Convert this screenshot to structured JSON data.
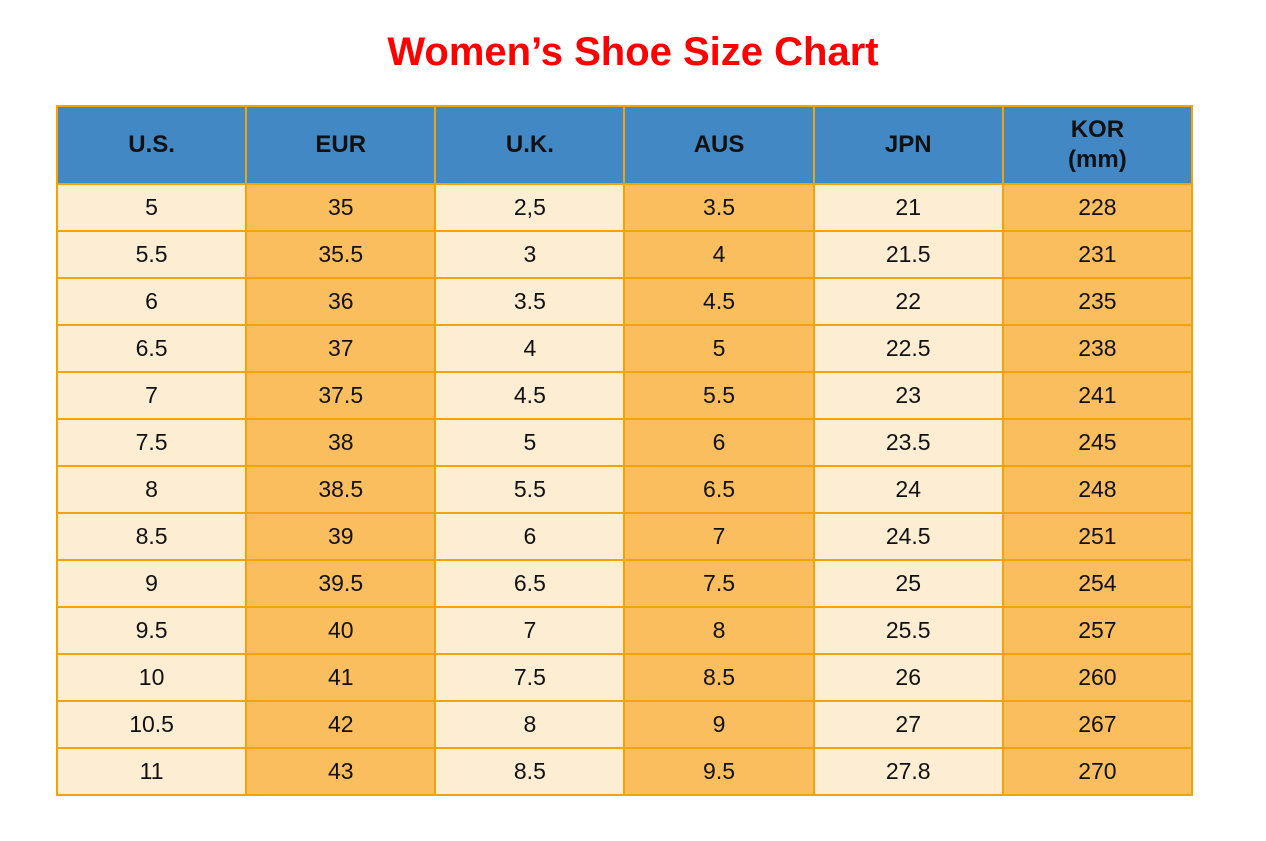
{
  "title": {
    "text": "Women’s Shoe Size Chart",
    "color": "#ff0000"
  },
  "table": {
    "columns": [
      {
        "key": "us",
        "label": "U.S."
      },
      {
        "key": "eur",
        "label": "EUR"
      },
      {
        "key": "uk",
        "label": "U.K."
      },
      {
        "key": "aus",
        "label": "AUS"
      },
      {
        "key": "jpn",
        "label": "JPN"
      },
      {
        "key": "kor",
        "label": "KOR",
        "sublabel": "(mm)"
      }
    ],
    "colors": {
      "header_bg": "#4288c5",
      "cell_cream": "#fdedd3",
      "cell_orange": "#fbbe5e",
      "border": "#f2a30a",
      "title_red": "#ff0000",
      "text": "#111111"
    }
  },
  "chart_data": {
    "type": "table",
    "title": "Women’s Shoe Size Chart",
    "columns": [
      "U.S.",
      "EUR",
      "U.K.",
      "AUS",
      "JPN",
      "KOR (mm)"
    ],
    "rows": [
      [
        "5",
        "35",
        "2,5",
        "3.5",
        "21",
        "228"
      ],
      [
        "5.5",
        "35.5",
        "3",
        "4",
        "21.5",
        "231"
      ],
      [
        "6",
        "36",
        "3.5",
        "4.5",
        "22",
        "235"
      ],
      [
        "6.5",
        "37",
        "4",
        "5",
        "22.5",
        "238"
      ],
      [
        "7",
        "37.5",
        "4.5",
        "5.5",
        "23",
        "241"
      ],
      [
        "7.5",
        "38",
        "5",
        "6",
        "23.5",
        "245"
      ],
      [
        "8",
        "38.5",
        "5.5",
        "6.5",
        "24",
        "248"
      ],
      [
        "8.5",
        "39",
        "6",
        "7",
        "24.5",
        "251"
      ],
      [
        "9",
        "39.5",
        "6.5",
        "7.5",
        "25",
        "254"
      ],
      [
        "9.5",
        "40",
        "7",
        "8",
        "25.5",
        "257"
      ],
      [
        "10",
        "41",
        "7.5",
        "8.5",
        "26",
        "260"
      ],
      [
        "10.5",
        "42",
        "8",
        "9",
        "27",
        "267"
      ],
      [
        "11",
        "43",
        "8.5",
        "9.5",
        "27.8",
        "270"
      ]
    ]
  }
}
